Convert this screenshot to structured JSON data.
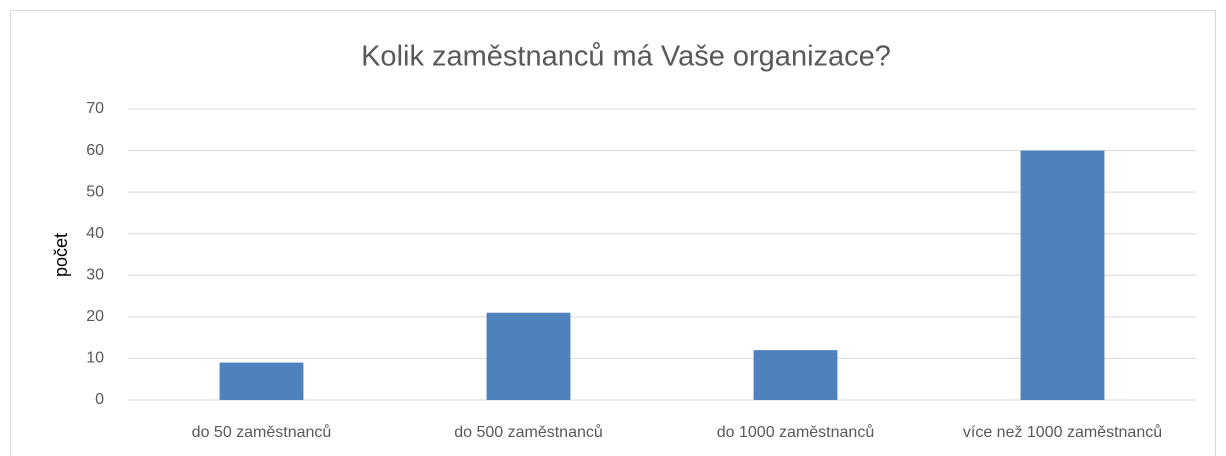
{
  "chart_data": {
    "type": "bar",
    "title": "Kolik zaměstnanců má Vaše organizace?",
    "y_label": "počet",
    "categories": [
      "do 50 zaměstnanců",
      "do 500 zaměstnanců",
      "do 1000 zaměstnanců",
      "více než 1000 zaměstnanců"
    ],
    "values": [
      9,
      21,
      12,
      60
    ],
    "color": "#4f81bd",
    "ylim": [
      0,
      70
    ],
    "yticks": [
      0,
      10,
      20,
      30,
      40,
      50,
      60,
      70
    ],
    "grid": true
  }
}
